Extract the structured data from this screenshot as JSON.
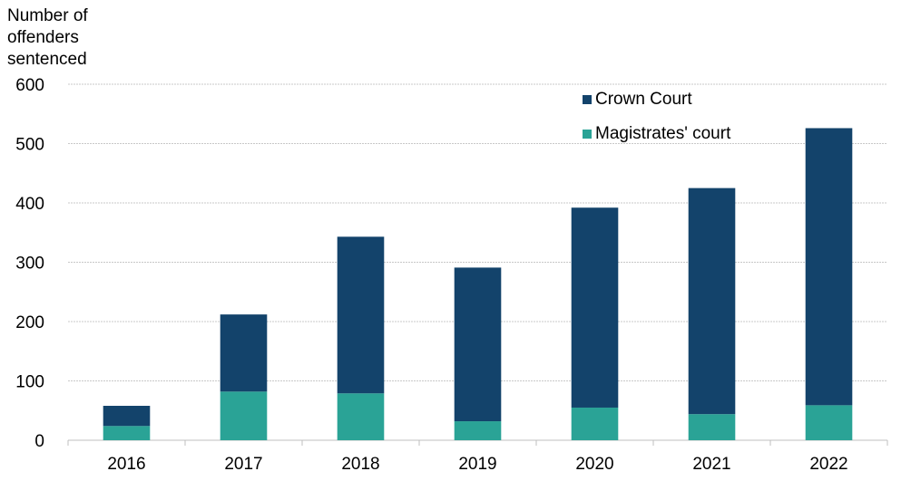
{
  "chart_data": {
    "type": "bar",
    "stacked": true,
    "ylabel_lines": [
      "Number of",
      "offenders",
      "sentenced"
    ],
    "categories": [
      "2016",
      "2017",
      "2018",
      "2019",
      "2020",
      "2021",
      "2022"
    ],
    "series": [
      {
        "name": "Magistrates' court",
        "color": "#2aa396",
        "values": [
          24,
          82,
          79,
          32,
          55,
          44,
          59
        ]
      },
      {
        "name": "Crown Court",
        "color": "#13436b",
        "values": [
          34,
          130,
          264,
          259,
          337,
          381,
          467
        ]
      }
    ],
    "ylim": [
      0,
      600
    ],
    "yticks": [
      "0",
      "100",
      "200",
      "300",
      "400",
      "500",
      "600"
    ],
    "grid": true,
    "legend_position": "top-right"
  }
}
